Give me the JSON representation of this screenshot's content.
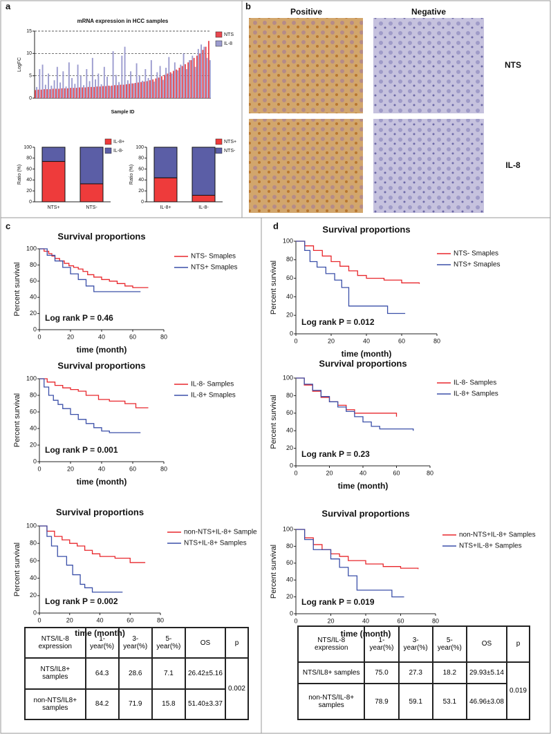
{
  "labels": {
    "a": "a",
    "b": "b",
    "c": "c",
    "d": "d"
  },
  "images": {
    "columns": [
      "Positive",
      "Negative"
    ],
    "rows": [
      "NTS",
      "IL-8"
    ]
  },
  "chart_data": [
    {
      "type": "bar",
      "title": "mRNA expression in HCC samples",
      "x_label": "Sample ID",
      "y_label": "LogFC",
      "categories": [
        null,
        null,
        null,
        null,
        null,
        null,
        null,
        null,
        null,
        null,
        null,
        null,
        null,
        null,
        null,
        null,
        null,
        null,
        null,
        null,
        null,
        null,
        null,
        null,
        null,
        null,
        null,
        null,
        null,
        null,
        null,
        null,
        null,
        null,
        null,
        null,
        null,
        null,
        null,
        null,
        null,
        null,
        null,
        null,
        null,
        null,
        null,
        null,
        null,
        null,
        null,
        null,
        null,
        null,
        null,
        null,
        null,
        null,
        null,
        null
      ],
      "series": [
        {
          "name": "NTS",
          "color": "#e8474f",
          "values": [
            1.8,
            1.9,
            1.9,
            2.0,
            2.0,
            2.0,
            2.1,
            2.1,
            2.1,
            2.2,
            2.2,
            2.2,
            2.3,
            2.3,
            2.3,
            2.4,
            2.4,
            2.4,
            2.5,
            2.5,
            2.5,
            2.6,
            2.6,
            2.7,
            2.7,
            2.8,
            2.8,
            2.9,
            2.9,
            3.0,
            3.0,
            3.1,
            3.2,
            3.3,
            3.4,
            3.5,
            3.6,
            3.7,
            3.8,
            4.0,
            4.2,
            4.4,
            4.6,
            4.9,
            5.2,
            5.5,
            5.8,
            6.1,
            6.4,
            6.8,
            7.2,
            7.6,
            8.0,
            8.5,
            9.0,
            9.5,
            10.0,
            10.8,
            11.5,
            12.8
          ]
        },
        {
          "name": "IL-8",
          "color": "#9c9ccf",
          "values": [
            2.5,
            6.5,
            7.5,
            3.0,
            5.5,
            2.8,
            4.0,
            7.0,
            3.5,
            6.0,
            2.6,
            8.0,
            4.5,
            3.2,
            7.5,
            5.0,
            2.9,
            6.5,
            3.8,
            9.0,
            4.2,
            5.5,
            3.1,
            7.0,
            4.8,
            2.7,
            10.5,
            5.2,
            3.6,
            9.5,
            11.5,
            4.0,
            6.0,
            3.3,
            7.8,
            5.0,
            3.9,
            6.5,
            4.5,
            8.5,
            3.7,
            5.8,
            7.2,
            4.1,
            6.8,
            9.2,
            5.5,
            8.0,
            6.2,
            7.5,
            10.0,
            6.5,
            8.5,
            9.5,
            7.0,
            11.0,
            12.0,
            11.5,
            9.0,
            8.5
          ]
        }
      ],
      "ylim": [
        0,
        15
      ],
      "yticks": [
        0,
        5,
        10,
        15
      ],
      "grid": true
    },
    {
      "type": "stacked",
      "y_label": "Ratio (%)",
      "categories": [
        "NTS+",
        "NTS-"
      ],
      "series": [
        {
          "name": "IL-8+",
          "color": "#ee3b3b",
          "values": [
            74,
            33
          ]
        },
        {
          "name": "IL-8-",
          "color": "#5b5ea6",
          "values": [
            26,
            67
          ]
        }
      ],
      "ylim": [
        0,
        100
      ],
      "yticks": [
        0,
        20,
        40,
        60,
        80,
        100
      ]
    },
    {
      "type": "stacked",
      "y_label": "Ratio (%)",
      "categories": [
        "IL-8+",
        "IL-8-"
      ],
      "series": [
        {
          "name": "NTS+",
          "color": "#ee3b3b",
          "values": [
            44,
            12
          ]
        },
        {
          "name": "NTS-",
          "color": "#5b5ea6",
          "values": [
            56,
            88
          ]
        }
      ],
      "ylim": [
        0,
        100
      ],
      "yticks": [
        0,
        20,
        40,
        60,
        80,
        100
      ]
    },
    {
      "type": "step",
      "title": "Survival proportions",
      "x_label": "time (month)",
      "y_label": "Percent survival",
      "annotation": "Log rank P = 0.46",
      "series": [
        {
          "name": "NTS- Smaples",
          "color": "#e8262b",
          "x": [
            0,
            3,
            6,
            8,
            10,
            13,
            16,
            19,
            22,
            25,
            28,
            31,
            35,
            40,
            45,
            50,
            55,
            60,
            70
          ],
          "values": [
            100,
            97,
            94,
            91,
            88,
            85,
            82,
            79,
            77,
            75,
            72,
            68,
            65,
            62,
            60,
            57,
            54,
            52,
            52
          ]
        },
        {
          "name": "NTS+ Smaples",
          "color": "#3a4fa8",
          "x": [
            0,
            5,
            10,
            15,
            20,
            25,
            30,
            35,
            60,
            65
          ],
          "values": [
            100,
            92,
            85,
            77,
            69,
            62,
            54,
            47,
            47,
            47
          ]
        }
      ],
      "xlim": [
        0,
        80
      ],
      "xticks": [
        0,
        20,
        40,
        60,
        80
      ],
      "ylim": [
        0,
        100
      ],
      "yticks": [
        0,
        20,
        40,
        60,
        80,
        100
      ]
    },
    {
      "type": "step",
      "title": "Survival proportions",
      "x_label": "time (month)",
      "y_label": "Percent survival",
      "annotation": "Log rank P = 0.001",
      "series": [
        {
          "name": "IL-8- Samples",
          "color": "#e8262b",
          "x": [
            0,
            5,
            10,
            15,
            20,
            25,
            30,
            38,
            45,
            55,
            62,
            70
          ],
          "values": [
            100,
            96,
            92,
            89,
            87,
            85,
            80,
            75,
            73,
            70,
            65,
            65
          ]
        },
        {
          "name": "IL-8+ Smaples",
          "color": "#3a4fa8",
          "x": [
            0,
            3,
            6,
            9,
            12,
            15,
            20,
            25,
            30,
            35,
            40,
            45,
            65
          ],
          "values": [
            100,
            90,
            80,
            74,
            69,
            64,
            57,
            51,
            46,
            41,
            37,
            35,
            35
          ]
        }
      ],
      "xlim": [
        0,
        80
      ],
      "xticks": [
        0,
        20,
        40,
        60,
        80
      ],
      "ylim": [
        0,
        100
      ],
      "yticks": [
        0,
        20,
        40,
        60,
        80,
        100
      ]
    },
    {
      "type": "step",
      "title": "Survival proportions",
      "x_label": "time (month)",
      "y_label": "Percent survival",
      "annotation": "Log rank P = 0.002",
      "series": [
        {
          "name": "non-NTS+IL-8+ Sample",
          "color": "#e8262b",
          "x": [
            0,
            5,
            10,
            15,
            20,
            25,
            30,
            35,
            40,
            50,
            60,
            70
          ],
          "values": [
            100,
            94,
            88,
            84,
            80,
            77,
            72,
            68,
            65,
            63,
            58,
            58
          ]
        },
        {
          "name": "NTS+IL-8+ Samples",
          "color": "#3a4fa8",
          "x": [
            0,
            5,
            8,
            12,
            18,
            22,
            27,
            30,
            35,
            55
          ],
          "values": [
            100,
            88,
            77,
            65,
            55,
            44,
            33,
            29,
            24,
            24
          ]
        }
      ],
      "xlim": [
        0,
        80
      ],
      "xticks": [
        0,
        20,
        40,
        60,
        80
      ],
      "ylim": [
        0,
        100
      ],
      "yticks": [
        0,
        20,
        40,
        60,
        80,
        100
      ]
    },
    {
      "type": "step",
      "title": "Survival proportions",
      "x_label": "time (month)",
      "y_label": "Percent survival",
      "annotation": "Log rank P = 0.012",
      "series": [
        {
          "name": "NTS- Smaples",
          "color": "#e8262b",
          "x": [
            0,
            5,
            10,
            15,
            20,
            25,
            30,
            35,
            40,
            50,
            60,
            70
          ],
          "values": [
            100,
            95,
            90,
            84,
            78,
            73,
            68,
            63,
            60,
            58,
            55,
            54
          ]
        },
        {
          "name": "NTS+ Smaples",
          "color": "#3a4fa8",
          "x": [
            0,
            5,
            8,
            12,
            17,
            22,
            26,
            30,
            52,
            62
          ],
          "values": [
            100,
            90,
            78,
            72,
            65,
            58,
            50,
            30,
            22,
            22
          ]
        }
      ],
      "xlim": [
        0,
        80
      ],
      "xticks": [
        0,
        20,
        40,
        60,
        80
      ],
      "ylim": [
        0,
        100
      ],
      "yticks": [
        0,
        20,
        40,
        60,
        80,
        100
      ]
    },
    {
      "type": "step",
      "title": "Survival proportions",
      "x_label": "time (month)",
      "y_label": "Percent survival",
      "annotation": "Log rank P = 0.23",
      "series": [
        {
          "name": "IL-8- Samples",
          "color": "#e8262b",
          "x": [
            0,
            5,
            10,
            15,
            20,
            25,
            30,
            35,
            57,
            60
          ],
          "values": [
            100,
            92,
            85,
            78,
            73,
            69,
            64,
            60,
            60,
            56
          ]
        },
        {
          "name": "IL-8+ Samples",
          "color": "#3a4fa8",
          "x": [
            0,
            5,
            10,
            15,
            20,
            25,
            30,
            35,
            40,
            45,
            50,
            70
          ],
          "values": [
            100,
            93,
            86,
            79,
            73,
            67,
            62,
            56,
            50,
            45,
            42,
            40
          ]
        }
      ],
      "xlim": [
        0,
        80
      ],
      "xticks": [
        0,
        20,
        40,
        60,
        80
      ],
      "ylim": [
        0,
        100
      ],
      "yticks": [
        0,
        20,
        40,
        60,
        80,
        100
      ]
    },
    {
      "type": "step",
      "title": "Survival proportions",
      "x_label": "time (month)",
      "y_label": "Percent survival",
      "annotation": "Log rank P = 0.019",
      "series": [
        {
          "name": "non-NTS+IL-8+ Samples",
          "color": "#e8262b",
          "x": [
            0,
            5,
            10,
            15,
            20,
            25,
            30,
            40,
            50,
            60,
            70
          ],
          "values": [
            100,
            90,
            82,
            76,
            71,
            68,
            63,
            59,
            56,
            54,
            53
          ]
        },
        {
          "name": "NTS+IL-8+ Samples",
          "color": "#3a4fa8",
          "x": [
            0,
            5,
            10,
            20,
            25,
            30,
            35,
            55,
            62
          ],
          "values": [
            100,
            88,
            76,
            65,
            55,
            45,
            28,
            20,
            20
          ]
        }
      ],
      "xlim": [
        0,
        80
      ],
      "xticks": [
        0,
        20,
        40,
        60,
        80
      ],
      "ylim": [
        0,
        100
      ],
      "yticks": [
        0,
        20,
        40,
        60,
        80,
        100
      ]
    }
  ],
  "tables": [
    {
      "header": [
        "NTS/IL-8 expression",
        "1-year(%)",
        "3-year(%)",
        "5-year(%)",
        "OS",
        "p"
      ],
      "rows": [
        [
          "NTS/IL8+ samples",
          "64.3",
          "28.6",
          "7.1",
          "26.42±5.16",
          "0.002"
        ],
        [
          "non-NTS/IL8+ samples",
          "84.2",
          "71.9",
          "15.8",
          "51.40±3.37"
        ]
      ]
    },
    {
      "header": [
        "NTS/IL-8 expression",
        "1-year(%)",
        "3-year(%)",
        "5-year(%)",
        "OS",
        "p"
      ],
      "rows": [
        [
          "NTS/IL8+ samples",
          "75.0",
          "27.3",
          "18.2",
          "29.93±5.14",
          "0.019"
        ],
        [
          "non-NTS/IL-8+ samples",
          "78.9",
          "59.1",
          "53.1",
          "46.96±3.08"
        ]
      ]
    }
  ]
}
